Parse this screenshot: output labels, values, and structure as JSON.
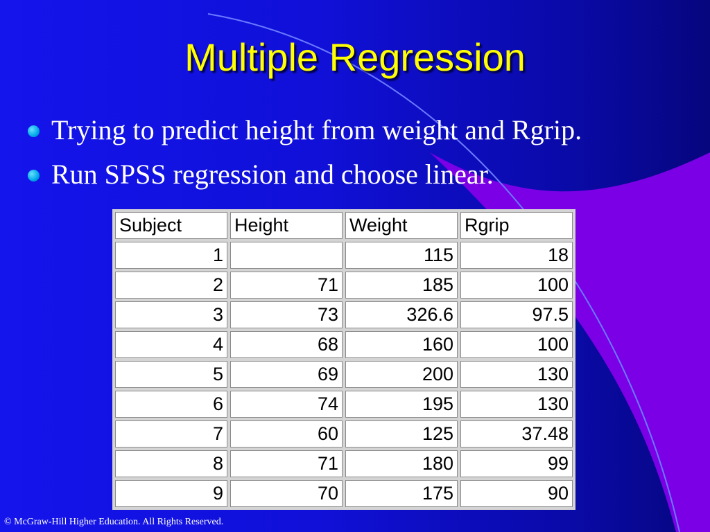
{
  "title": "Multiple Regression",
  "bullets": [
    "Trying to predict height from weight and Rgrip.",
    "Run SPSS regression and choose linear."
  ],
  "table": {
    "headers": [
      "Subject",
      "Height",
      "Weight",
      "Rgrip"
    ],
    "rows": [
      [
        "1",
        "",
        "115",
        "18"
      ],
      [
        "2",
        "71",
        "185",
        "100"
      ],
      [
        "3",
        "73",
        "326.6",
        "97.5"
      ],
      [
        "4",
        "68",
        "160",
        "100"
      ],
      [
        "5",
        "69",
        "200",
        "130"
      ],
      [
        "6",
        "74",
        "195",
        "130"
      ],
      [
        "7",
        "60",
        "125",
        "37.48"
      ],
      [
        "8",
        "71",
        "180",
        "99"
      ],
      [
        "9",
        "70",
        "175",
        "90"
      ]
    ]
  },
  "footer": "© McGraw-Hill Higher Education. All Rights Reserved.",
  "colors": {
    "title": "#ffff00",
    "bullet_dot": "#00a8e8",
    "swoosh": "#7b00e6"
  }
}
